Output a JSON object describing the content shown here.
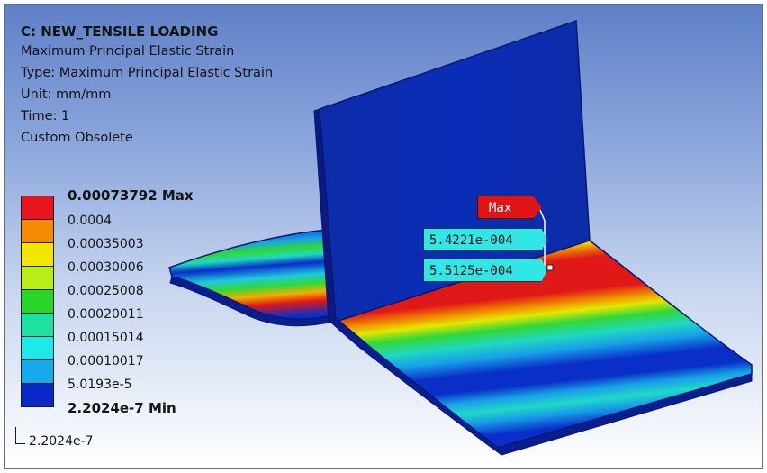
{
  "info": {
    "title": "C: NEW_TENSILE LOADING",
    "result_name": "Maximum Principal Elastic Strain",
    "type_line": "Type: Maximum Principal Elastic Strain",
    "unit_line": "Unit: mm/mm",
    "time_line": "Time: 1",
    "note_line": "Custom Obsolete"
  },
  "legend": {
    "max_label": "0.00073792 Max",
    "levels": [
      "0.0004",
      "0.00035003",
      "0.00030006",
      "0.00025008",
      "0.00020011",
      "0.00015014",
      "0.00010017",
      "5.0193e-5"
    ],
    "min_label": "2.2024e-7 Min",
    "below_label": "2.2024e-7",
    "colors": [
      "#e8141e",
      "#f58a00",
      "#f0e600",
      "#b8ee18",
      "#28d62a",
      "#1ee0a0",
      "#20e8e8",
      "#18a8ec",
      "#0a28c8"
    ]
  },
  "probes": {
    "max_label": "Max",
    "probe_1": "5.4221e-004",
    "probe_2": "5.5125e-004"
  }
}
